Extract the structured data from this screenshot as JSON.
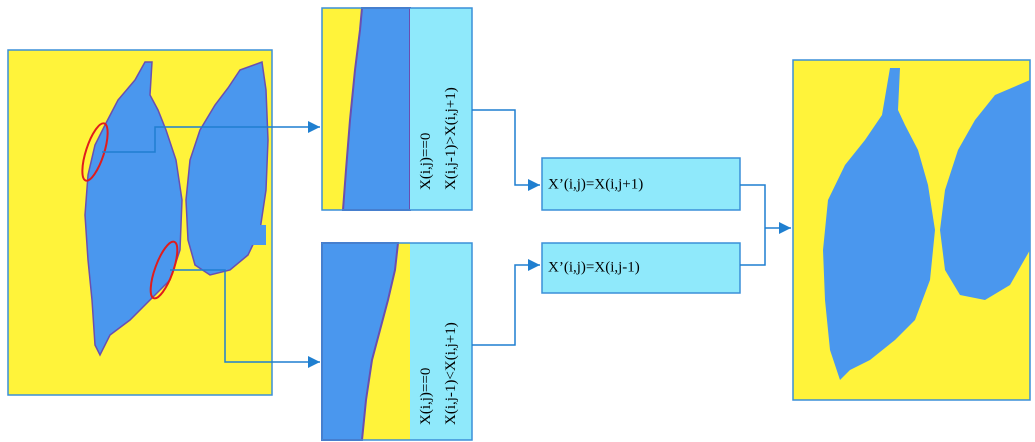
{
  "conditions": [
    {
      "line1": "X(i,j)==0",
      "line2": "X(i,j-1)>X(i,j+1)"
    },
    {
      "line1": "X(i,j)==0",
      "line2": "X(i,j-1)<X(i,j+1)"
    }
  ],
  "operations": [
    "X’(i,j)=X(i,j+1)",
    "X’(i,j)=X(i,j-1)"
  ]
}
